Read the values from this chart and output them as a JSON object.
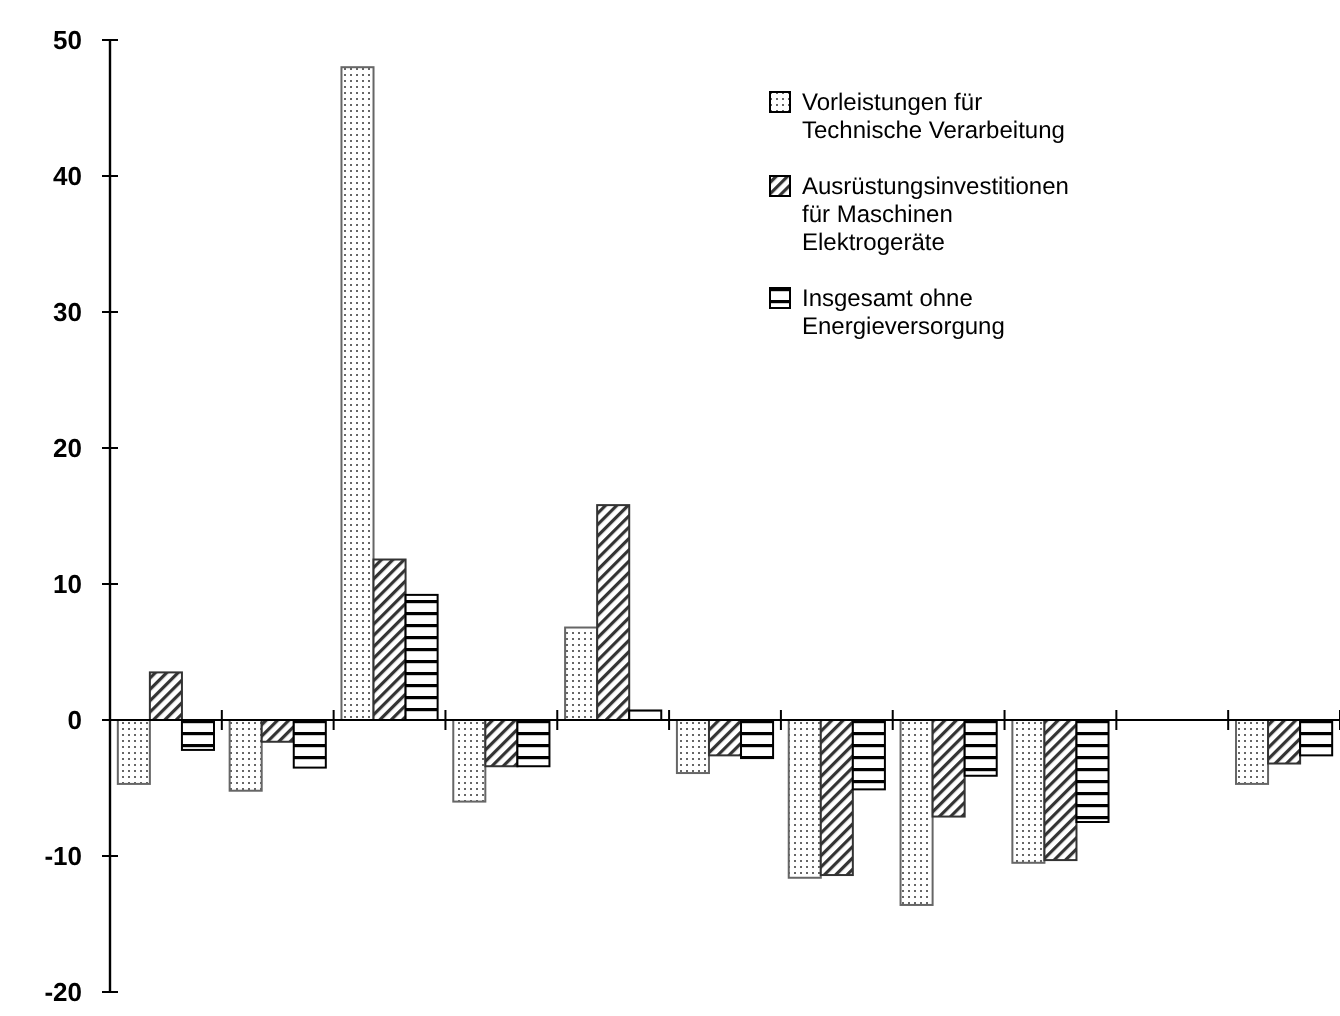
{
  "chart_data": {
    "type": "bar",
    "categories": [
      null,
      null,
      null,
      null,
      null,
      null,
      null,
      null,
      null,
      null,
      null
    ],
    "series": [
      {
        "name": "Vorleistungen für Technische Verarbeitung",
        "color": "#666666",
        "values": [
          -4.7,
          -5.2,
          48.0,
          -6.0,
          6.8,
          -3.9,
          -11.6,
          -13.6,
          -10.5,
          null,
          -4.7
        ]
      },
      {
        "name": "Ausrüstungsinvestitionen für Maschinen Elektrogeräte",
        "color": "#333333",
        "values": [
          3.5,
          -1.6,
          11.8,
          -3.4,
          15.8,
          -2.6,
          -11.4,
          -7.1,
          -10.3,
          null,
          -3.2
        ]
      },
      {
        "name": "Insgesamt ohne Energieversorgung",
        "color": "#000000",
        "values": [
          -2.2,
          -3.5,
          9.2,
          -3.4,
          0.7,
          -2.8,
          -5.1,
          -4.1,
          -7.5,
          null,
          -2.6
        ]
      }
    ],
    "ylim": [
      -20,
      50
    ],
    "yticks": [
      -20,
      -10,
      0,
      10,
      20,
      30,
      40,
      50
    ],
    "grid": false,
    "ref_lines": [
      {
        "axis": "y",
        "value": 0,
        "color": "#000000"
      }
    ],
    "legend": "top right"
  }
}
